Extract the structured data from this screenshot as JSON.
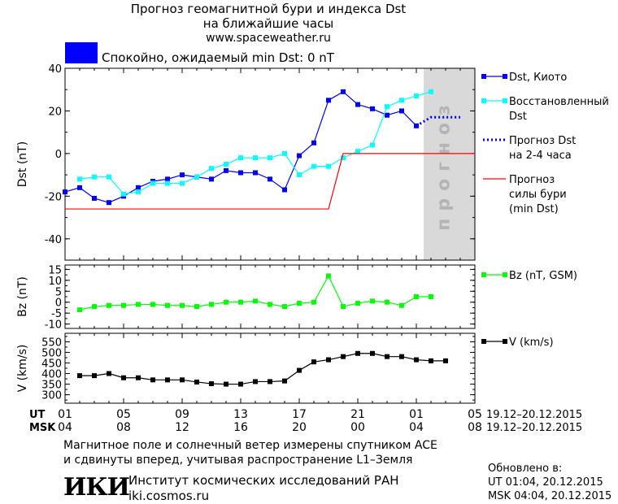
{
  "header": {
    "title_line1": "Прогноз геомагнитной бури и индекса Dst",
    "title_line2": "на ближайшие часы",
    "site": "www.spaceweather.ru",
    "status_text": "Спокойно, ожидаемый min Dst: 0 nT",
    "status_color": "#0000ff"
  },
  "forecast_band_label": "прогноз",
  "footer": {
    "note_line1": "Магнитное поле и солнечный ветер измерены спутником ACE",
    "note_line2": "и сдвинуты вперед, учитывая распространение L1–Земля",
    "institute": "Институт космических исследований РАН",
    "institute_url": "iki.cosmos.ru",
    "logo_text": "ИКИ",
    "updated_title": "Обновлено в:",
    "updated_ut": "UT  01:04, 20.12.2015",
    "updated_msk": "MSK 04:04, 20.12.2015"
  },
  "time_axis": {
    "ut_label": "UT",
    "msk_label": "MSK",
    "ut_ticks": [
      "01",
      "05",
      "09",
      "13",
      "17",
      "21",
      "01",
      "05"
    ],
    "msk_ticks": [
      "04",
      "08",
      "12",
      "16",
      "20",
      "00",
      "04",
      "08"
    ],
    "date_range_ut": "19.12–20.12.2015",
    "date_range_msk": "19.12–20.12.2015"
  },
  "chart_data": [
    {
      "type": "line",
      "ylabel": "Dst (nT)",
      "ylim": [
        -50,
        40
      ],
      "yticks": [
        -40,
        -20,
        0,
        20,
        40
      ],
      "xlim": [
        0,
        28
      ],
      "forecast_region": [
        24.5,
        28
      ],
      "series": [
        {
          "name": "Dst, Киото",
          "color": "#0000ff",
          "marker": "square",
          "x": [
            0,
            1,
            2,
            3,
            4,
            5,
            6,
            7,
            8,
            9,
            10,
            11,
            12,
            13,
            14,
            15,
            16,
            17,
            18,
            19,
            20,
            21,
            22,
            23,
            24
          ],
          "y": [
            -18,
            -16,
            -21,
            -23,
            -20,
            -16,
            -13,
            -12,
            -10,
            -11,
            -12,
            -8,
            -9,
            -9,
            -12,
            -17,
            -1,
            5,
            25,
            29,
            23,
            21,
            18,
            20,
            13
          ]
        },
        {
          "name": "Восстановленный Dst",
          "color": "#00ffff",
          "marker": "square",
          "x": [
            1,
            2,
            3,
            4,
            5,
            6,
            7,
            8,
            9,
            10,
            11,
            12,
            13,
            14,
            15,
            16,
            17,
            18,
            19,
            20,
            21,
            22,
            23,
            24,
            25
          ],
          "y": [
            -12,
            -11,
            -11,
            -19,
            -18,
            -14,
            -14,
            -14,
            -11,
            -7,
            -5,
            -2,
            -2,
            -2,
            0,
            -10,
            -6,
            -6,
            -2,
            1,
            4,
            22,
            25,
            27,
            29
          ]
        },
        {
          "name": "Прогноз Dst на 2-4 часа",
          "color": "#0000ff",
          "marker": "none",
          "dotted": true,
          "x": [
            24,
            25,
            26,
            27
          ],
          "y": [
            13,
            17,
            17,
            17
          ]
        },
        {
          "name": "Прогноз силы бури (min Dst)",
          "color": "#ff0000",
          "marker": "none",
          "x": [
            0,
            18,
            19,
            28
          ],
          "y": [
            -26,
            -26,
            0,
            0
          ]
        }
      ],
      "legend": [
        {
          "lines": [
            "Dst, Киото"
          ],
          "color": "#0000ff",
          "style": "marker"
        },
        {
          "lines": [
            "Восстановленный",
            "Dst"
          ],
          "color": "#00ffff",
          "style": "marker"
        },
        {
          "lines": [
            "Прогноз Dst",
            "на 2-4 часа"
          ],
          "color": "#0000ff",
          "style": "dotted"
        },
        {
          "lines": [
            "Прогноз",
            "силы бури",
            "(min Dst)"
          ],
          "color": "#ff0000",
          "style": "solid"
        }
      ]
    },
    {
      "type": "line",
      "ylabel": "Bz (nT)",
      "ylim": [
        -12,
        17
      ],
      "yticks": [
        -10,
        -5,
        0,
        5,
        10,
        15
      ],
      "xlim": [
        0,
        28
      ],
      "series": [
        {
          "name": "Bz (nT, GSM)",
          "color": "#00ff00",
          "marker": "square",
          "x": [
            1,
            2,
            3,
            4,
            5,
            6,
            7,
            8,
            9,
            10,
            11,
            12,
            13,
            14,
            15,
            16,
            17,
            18,
            19,
            20,
            21,
            22,
            23,
            24,
            25
          ],
          "y": [
            -3.5,
            -2,
            -1.5,
            -1.5,
            -1,
            -1,
            -1.5,
            -1.5,
            -2,
            -1,
            0,
            0,
            0.5,
            -1,
            -2,
            -0.5,
            0,
            12,
            -2,
            -0.5,
            0.5,
            0,
            -1.5,
            2.5,
            2.5
          ]
        }
      ],
      "legend": [
        {
          "lines": [
            "Bz (nT, GSM)"
          ],
          "color": "#00ff00",
          "style": "marker"
        }
      ]
    },
    {
      "type": "line",
      "ylabel": "V (km/s)",
      "ylim": [
        260,
        590
      ],
      "yticks": [
        300,
        350,
        400,
        450,
        500,
        550
      ],
      "xlim": [
        0,
        28
      ],
      "series": [
        {
          "name": "V (km/s)",
          "color": "#000000",
          "marker": "square",
          "x": [
            1,
            2,
            3,
            4,
            5,
            6,
            7,
            8,
            9,
            10,
            11,
            12,
            13,
            14,
            15,
            16,
            17,
            18,
            19,
            20,
            21,
            22,
            23,
            24,
            25,
            26
          ],
          "y": [
            390,
            390,
            400,
            380,
            380,
            370,
            370,
            370,
            360,
            352,
            350,
            350,
            362,
            362,
            365,
            415,
            455,
            465,
            480,
            495,
            495,
            480,
            480,
            465,
            460,
            460
          ]
        }
      ],
      "legend": [
        {
          "lines": [
            "V (km/s)"
          ],
          "color": "#000000",
          "style": "marker"
        }
      ]
    }
  ]
}
